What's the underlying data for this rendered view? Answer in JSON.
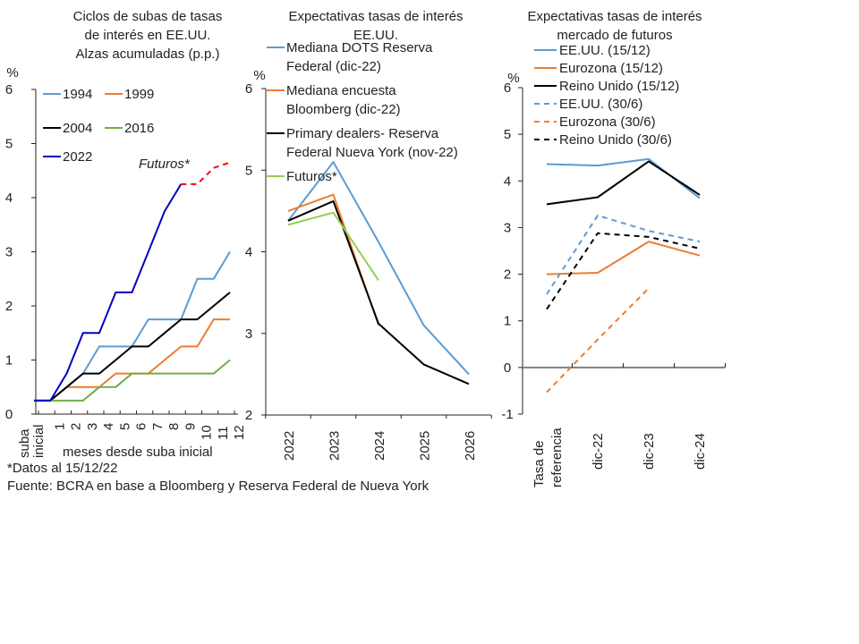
{
  "footnotes": {
    "data_date": "*Datos al 15/12/22",
    "source": "Fuente: BCRA en base a Bloomberg y Reserva Federal de Nueva York"
  },
  "chart_data": [
    {
      "type": "line",
      "title": "Ciclos de subas de tasas de interés en EE.UU. Alzas acumuladas (p.p.)",
      "title_lines": [
        "Ciclos de subas de tasas",
        "de interés en EE.UU.",
        "Alzas acumuladas (p.p.)"
      ],
      "ylabel": "%",
      "xlabel": "meses desde suba inicial",
      "ylim": [
        0,
        6
      ],
      "yticks": [
        "0",
        "1",
        "2",
        "3",
        "4",
        "5",
        "6"
      ],
      "x": [
        "suba inicial",
        "1",
        "2",
        "3",
        "4",
        "5",
        "6",
        "7",
        "8",
        "9",
        "10",
        "11",
        "12"
      ],
      "annotation": "Futuros*",
      "legend_position": "top-left",
      "series": [
        {
          "name": "1994",
          "color": "#5B9BD5",
          "values": [
            0.25,
            0.25,
            0.5,
            0.75,
            1.25,
            1.25,
            1.25,
            1.75,
            1.75,
            1.75,
            2.5,
            2.5,
            3.0
          ]
        },
        {
          "name": "1999",
          "color": "#ED7D31",
          "values": [
            0.25,
            0.25,
            0.5,
            0.5,
            0.5,
            0.75,
            0.75,
            0.75,
            1.0,
            1.25,
            1.25,
            1.75,
            1.75
          ]
        },
        {
          "name": "2004",
          "color": "#000000",
          "values": [
            0.25,
            0.25,
            0.5,
            0.75,
            0.75,
            1.0,
            1.25,
            1.25,
            1.5,
            1.75,
            1.75,
            2.0,
            2.25
          ]
        },
        {
          "name": "2016",
          "color": "#70AD47",
          "values": [
            0.25,
            0.25,
            0.25,
            0.25,
            0.5,
            0.5,
            0.75,
            0.75,
            0.75,
            0.75,
            0.75,
            0.75,
            1.0
          ]
        },
        {
          "name": "2022",
          "color": "#0000C0",
          "values": [
            0.25,
            0.25,
            0.75,
            1.5,
            1.5,
            2.25,
            2.25,
            3.0,
            3.75,
            4.25,
            null,
            null,
            null
          ]
        },
        {
          "name": "Futuros*",
          "color": "#FF0000",
          "dashed": true,
          "in_legend": false,
          "values": [
            null,
            null,
            null,
            null,
            null,
            null,
            null,
            null,
            null,
            4.25,
            4.25,
            4.55,
            4.65
          ]
        }
      ]
    },
    {
      "type": "line",
      "title": "Expectativas tasas de interés EE.UU.",
      "title_lines": [
        "Expectativas tasas de interés",
        "EE.UU."
      ],
      "ylabel": "%",
      "ylim": [
        2,
        6
      ],
      "yticks": [
        "2",
        "3",
        "4",
        "5",
        "6"
      ],
      "x": [
        "2022",
        "2023",
        "2024",
        "2025",
        "2026"
      ],
      "legend_position": "top",
      "series": [
        {
          "name": "Mediana DOTS Reserva Federal (dic-22)",
          "legend_lines": [
            "Mediana DOTS Reserva",
            "Federal (dic-22)"
          ],
          "color": "#5B9BD5",
          "values": [
            4.38,
            5.1,
            4.12,
            3.1,
            2.5
          ]
        },
        {
          "name": "Mediana encuesta Bloomberg (dic-22)",
          "legend_lines": [
            "Mediana encuesta",
            "Bloomberg (dic-22)"
          ],
          "color": "#ED7D31",
          "values": [
            4.5,
            4.7,
            3.1,
            null,
            null
          ]
        },
        {
          "name": "Primary dealers- Reserva Federal Nueva York (nov-22)",
          "legend_lines": [
            "Primary dealers- Reserva",
            "Federal Nueva York (nov-22)"
          ],
          "color": "#000000",
          "values": [
            4.38,
            4.62,
            3.12,
            2.62,
            2.38
          ]
        },
        {
          "name": "Futuros*",
          "legend_lines": [
            "Futuros*"
          ],
          "color": "#92D050",
          "values": [
            4.33,
            4.48,
            3.65,
            null,
            null
          ]
        }
      ]
    },
    {
      "type": "line",
      "title": "Expectativas tasas de interés mercado de futuros",
      "title_lines": [
        "Expectativas tasas de interés",
        "mercado de futuros"
      ],
      "ylabel": "%",
      "ylim": [
        -1,
        6
      ],
      "yticks": [
        "-1",
        "0",
        "1",
        "2",
        "3",
        "4",
        "5",
        "6"
      ],
      "x": [
        "Tasa de referencia",
        "dic-22",
        "dic-23",
        "dic-24"
      ],
      "x_label_lines": [
        [
          "Tasa de",
          "referencia"
        ],
        [
          "dic-22"
        ],
        [
          "dic-23"
        ],
        [
          "dic-24"
        ]
      ],
      "legend_position": "top",
      "series": [
        {
          "name": "EE.UU. (15/12)",
          "color": "#5B9BD5",
          "dashed": false,
          "values": [
            4.36,
            4.33,
            4.47,
            3.63
          ]
        },
        {
          "name": "Eurozona (15/12)",
          "color": "#ED7D31",
          "dashed": false,
          "values": [
            2.0,
            2.03,
            2.7,
            2.4
          ]
        },
        {
          "name": "Reino Unido (15/12)",
          "color": "#000000",
          "dashed": false,
          "values": [
            3.5,
            3.65,
            4.42,
            3.7
          ]
        },
        {
          "name": "EE.UU. (30/6)",
          "color": "#5B9BD5",
          "dashed": true,
          "values": [
            1.57,
            3.26,
            2.93,
            2.7
          ]
        },
        {
          "name": "Eurozona (30/6)",
          "color": "#ED7D31",
          "dashed": true,
          "values": [
            -0.53,
            0.6,
            1.7,
            null
          ]
        },
        {
          "name": "Reino Unido (30/6)",
          "color": "#000000",
          "dashed": true,
          "values": [
            1.25,
            2.88,
            2.8,
            2.55
          ]
        }
      ]
    }
  ]
}
